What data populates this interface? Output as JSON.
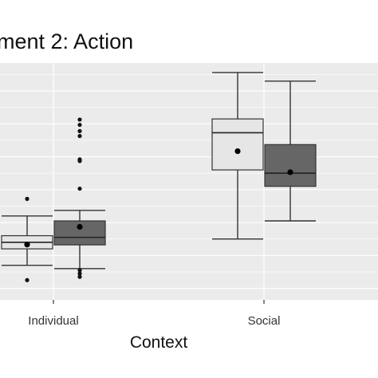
{
  "chart_data": {
    "type": "box",
    "title": "ment 2: Action",
    "xlabel": "Context",
    "categories": [
      "Individual",
      "Social"
    ],
    "ylim": [
      -0.35,
      6.85
    ],
    "grid": true,
    "legend": "none",
    "series": [
      {
        "fill": "#e6e6e6",
        "boxes": [
          {
            "category": "Individual",
            "whisker_low": 0.7,
            "q1": 1.2,
            "median": 1.4,
            "q3": 1.6,
            "whisker_high": 2.2,
            "mean": 1.33,
            "outliers": [
              0.25,
              2.72
            ]
          },
          {
            "category": "Social",
            "whisker_low": 1.5,
            "q1": 3.6,
            "median": 4.73,
            "q3": 5.15,
            "whisker_high": 6.56,
            "mean": 4.17
          }
        ]
      },
      {
        "fill": "#666666",
        "boxes": [
          {
            "category": "Individual",
            "whisker_low": 0.6,
            "q1": 1.32,
            "median": 1.55,
            "q3": 2.05,
            "whisker_high": 2.37,
            "mean": 1.87,
            "outliers": [
              0.35,
              0.45,
              0.55,
              3.03,
              3.87,
              3.92,
              4.63,
              4.78,
              4.97,
              5.13
            ]
          },
          {
            "category": "Social",
            "whisker_low": 2.05,
            "q1": 3.1,
            "median": 3.5,
            "q3": 4.37,
            "whisker_high": 6.3,
            "mean": 3.53
          }
        ]
      }
    ]
  }
}
